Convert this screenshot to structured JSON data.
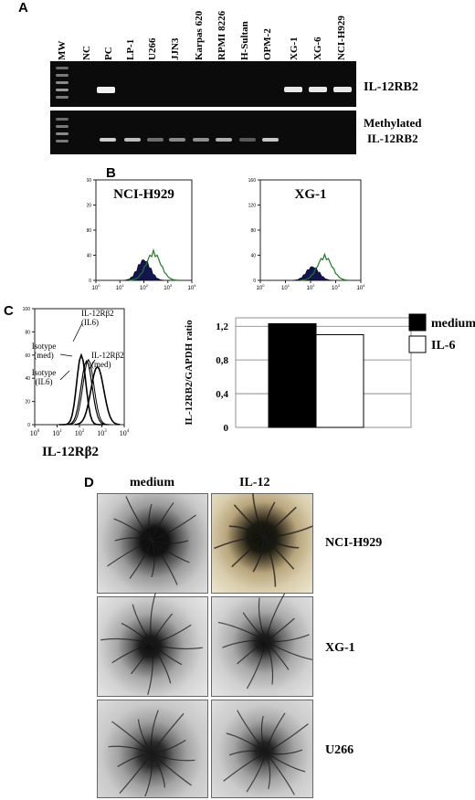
{
  "panelA": {
    "label": "A",
    "lanes": [
      "MW",
      "NC",
      "PC",
      "LP-1",
      "U266",
      "JJN3",
      "Karpas 620",
      "RPMI 8226",
      "H-Sultan",
      "OPM-2",
      "XG-1",
      "XG-6",
      "NCI-H929"
    ],
    "gel1_label": "IL-12RB2",
    "gel2_label_line1": "Methylated",
    "gel2_label_line2": "IL-12RB2"
  },
  "panelB": {
    "label": "B",
    "plots": [
      {
        "title": "NCI-H929"
      },
      {
        "title": "XG-1"
      }
    ],
    "y_ticks": [
      "0",
      "40",
      "80",
      "120",
      "160"
    ],
    "x_ticks": [
      "10^0",
      "10^1",
      "10^2",
      "10^3",
      "10^4"
    ]
  },
  "panelC": {
    "label": "C",
    "hist_annotations": [
      "IL-12Rβ2 (IL6)",
      "Isotype (med)",
      "Isotype (IL6)",
      "IL-12Rβ2 (med)"
    ],
    "hist_xlabel": "IL-12Rβ2",
    "hist_y_ticks": [
      "0",
      "20",
      "40",
      "60",
      "80",
      "100"
    ],
    "chart_data": {
      "type": "bar",
      "categories": [
        "medium",
        "IL-6"
      ],
      "values": [
        1.23,
        1.1
      ],
      "ylabel": "IL-12RB2/GAPDH ratio",
      "yticks": [
        "0",
        "0,4",
        "0,8",
        "1,2"
      ],
      "ylim": [
        0,
        1.3
      ],
      "legend": [
        {
          "name": "medium",
          "color": "#000000"
        },
        {
          "name": "IL-6",
          "color": "#ffffff"
        }
      ]
    }
  },
  "panelD": {
    "label": "D",
    "col_labels": [
      "medium",
      "IL-12"
    ],
    "row_labels": [
      "NCI-H929",
      "XG-1",
      "U266"
    ]
  }
}
